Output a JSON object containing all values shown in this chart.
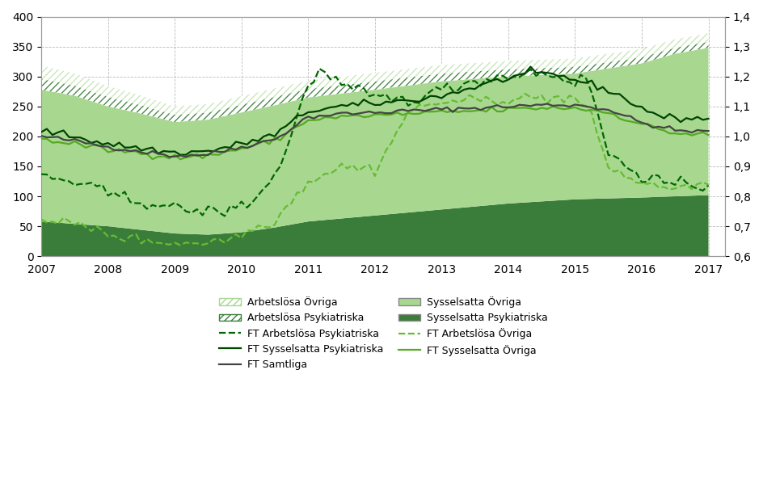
{
  "xlim": [
    2007,
    2017.25
  ],
  "ylim_left": [
    0,
    400
  ],
  "ylim_right": [
    0.6,
    1.4
  ],
  "yticks_left": [
    0,
    50,
    100,
    150,
    200,
    250,
    300,
    350,
    400
  ],
  "yticks_right": [
    0.6,
    0.7,
    0.8,
    0.9,
    1.0,
    1.1,
    1.2,
    1.3,
    1.4
  ],
  "xticks": [
    2007,
    2008,
    2009,
    2010,
    2011,
    2012,
    2013,
    2014,
    2015,
    2016,
    2017
  ],
  "color_syss_psyk": "#3a7d3a",
  "color_syss_ovr": "#a8d890",
  "color_arb_psyk_hatch": "#3a7d3a",
  "color_arb_ovr_hatch": "#a8d890",
  "color_ft_arb_psyk": "#006600",
  "color_ft_arb_ovr": "#66bb33",
  "color_ft_syss_psyk": "#004400",
  "color_ft_syss_ovr": "#55aa22",
  "color_ft_samtliga": "#444444",
  "grid_color": "#bbbbbb",
  "bg_color": "#ffffff",
  "syss_psyk_x": [
    2007,
    2007.5,
    2008,
    2008.5,
    2009,
    2009.5,
    2010,
    2010.5,
    2011,
    2012,
    2013,
    2014,
    2015,
    2016,
    2016.5,
    2017
  ],
  "syss_psyk_y": [
    58,
    54,
    50,
    44,
    38,
    36,
    40,
    48,
    58,
    68,
    78,
    88,
    95,
    98,
    100,
    102
  ],
  "syss_ovr_top_x": [
    2007,
    2007.5,
    2008,
    2008.5,
    2009,
    2009.5,
    2010,
    2010.5,
    2011,
    2012,
    2013,
    2014,
    2015,
    2016,
    2016.5,
    2017
  ],
  "syss_ovr_top_y": [
    278,
    268,
    250,
    238,
    224,
    228,
    240,
    252,
    265,
    278,
    292,
    300,
    305,
    322,
    338,
    348
  ],
  "arb_psyk_band_x": [
    2007,
    2007.5,
    2008,
    2008.5,
    2009,
    2009.5,
    2010,
    2010.5,
    2011,
    2012,
    2013,
    2014,
    2015,
    2016,
    2016.5,
    2017
  ],
  "arb_psyk_band_y": [
    18,
    17,
    16,
    14,
    12,
    12,
    13,
    14,
    14,
    14,
    13,
    12,
    11,
    10,
    10,
    10
  ],
  "arb_ovr_band_x": [
    2007,
    2007.5,
    2008,
    2008.5,
    2009,
    2009.5,
    2010,
    2010.5,
    2011,
    2012,
    2013,
    2014,
    2015,
    2016,
    2016.5,
    2017
  ],
  "arb_ovr_band_y": [
    22,
    20,
    18,
    16,
    14,
    14,
    14,
    14,
    14,
    14,
    14,
    14,
    14,
    14,
    14,
    14
  ],
  "ft_samtliga_x": [
    2007,
    2007.5,
    2008,
    2008.5,
    2009,
    2009.5,
    2010,
    2010.5,
    2011,
    2011.5,
    2012,
    2012.5,
    2013,
    2013.5,
    2014,
    2014.5,
    2015,
    2015.5,
    2016,
    2016.5,
    2017
  ],
  "ft_samtliga_y": [
    1.0,
    0.985,
    0.965,
    0.95,
    0.935,
    0.94,
    0.965,
    0.99,
    1.065,
    1.075,
    1.08,
    1.085,
    1.09,
    1.095,
    1.1,
    1.105,
    1.105,
    1.09,
    1.045,
    1.02,
    1.015
  ],
  "ft_syss_psyk_x": [
    2007,
    2007.5,
    2008,
    2008.5,
    2009,
    2009.5,
    2010,
    2010.5,
    2011,
    2011.5,
    2012,
    2012.5,
    2013,
    2013.5,
    2014,
    2014.3,
    2014.7,
    2015,
    2015.5,
    2016,
    2016.3,
    2016.5,
    2017
  ],
  "ft_syss_psyk_y": [
    1.02,
    1.0,
    0.975,
    0.96,
    0.945,
    0.95,
    0.975,
    1.005,
    1.085,
    1.1,
    1.11,
    1.12,
    1.135,
    1.165,
    1.195,
    1.21,
    1.205,
    1.19,
    1.155,
    1.095,
    1.065,
    1.06,
    1.06
  ],
  "ft_syss_ovr_x": [
    2007,
    2007.5,
    2008,
    2008.5,
    2009,
    2009.5,
    2010,
    2010.5,
    2011,
    2011.5,
    2012,
    2012.5,
    2013,
    2013.5,
    2014,
    2014.5,
    2015,
    2015.5,
    2016,
    2016.5,
    2017
  ],
  "ft_syss_ovr_y": [
    0.99,
    0.975,
    0.955,
    0.945,
    0.93,
    0.935,
    0.96,
    0.985,
    1.055,
    1.065,
    1.07,
    1.075,
    1.08,
    1.085,
    1.09,
    1.095,
    1.095,
    1.08,
    1.04,
    1.01,
    1.005
  ],
  "ft_arb_psyk_x": [
    2007,
    2007.3,
    2007.7,
    2008,
    2008.3,
    2008.7,
    2009,
    2009.2,
    2009.5,
    2009.8,
    2010,
    2010.2,
    2010.5,
    2010.7,
    2011,
    2011.2,
    2011.5,
    2012,
    2012.5,
    2013,
    2013.3,
    2013.7,
    2014,
    2014.3,
    2014.7,
    2015,
    2015.2,
    2015.5,
    2016,
    2016.5,
    2017
  ],
  "ft_arb_psyk_y": [
    0.87,
    0.855,
    0.835,
    0.81,
    0.79,
    0.775,
    0.76,
    0.755,
    0.748,
    0.752,
    0.77,
    0.79,
    0.87,
    0.97,
    1.18,
    1.22,
    1.17,
    1.13,
    1.12,
    1.155,
    1.175,
    1.195,
    1.2,
    1.215,
    1.205,
    1.18,
    1.195,
    0.94,
    0.87,
    0.835,
    0.835
  ],
  "ft_arb_ovr_x": [
    2007,
    2007.3,
    2007.7,
    2008,
    2008.3,
    2008.7,
    2009,
    2009.2,
    2009.5,
    2009.8,
    2010,
    2010.5,
    2011,
    2011.5,
    2012,
    2012.2,
    2012.5,
    2013,
    2013.5,
    2014,
    2014.5,
    2015,
    2015.2,
    2015.5,
    2016,
    2016.5,
    2017
  ],
  "ft_arb_ovr_y": [
    0.73,
    0.715,
    0.695,
    0.675,
    0.66,
    0.65,
    0.645,
    0.643,
    0.648,
    0.655,
    0.675,
    0.72,
    0.85,
    0.9,
    0.89,
    0.96,
    1.085,
    1.115,
    1.12,
    1.125,
    1.13,
    1.125,
    1.09,
    0.9,
    0.84,
    0.83,
    0.835
  ],
  "legend_col1": [
    "Arbetslösa Övriga",
    "Arbetslösa Psykiatriska",
    "FT Arbetslösa Psykiatriska",
    "FT Sysselsatta Psykiatriska",
    "FT Samtliga"
  ],
  "legend_col2": [
    "Sysselsatta Övriga",
    "Sysselsatta Psykiatriska",
    "FT Arbetslösa Övriga",
    "FT Sysselsatta Övriga"
  ]
}
